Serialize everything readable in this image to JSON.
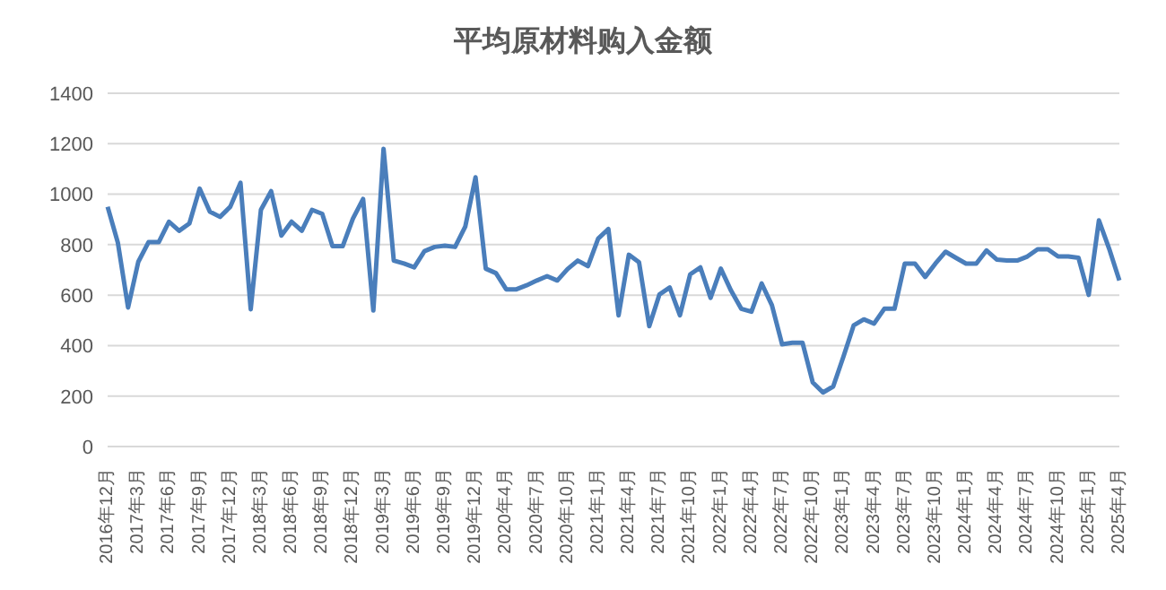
{
  "chart_data": {
    "type": "line",
    "title": "平均原材料购入金额",
    "categories": [
      "2016年12月",
      null,
      null,
      "2017年3月",
      null,
      null,
      "2017年6月",
      null,
      null,
      "2017年9月",
      null,
      null,
      "2017年12月",
      null,
      null,
      "2018年3月",
      null,
      null,
      "2018年6月",
      null,
      null,
      "2018年9月",
      null,
      null,
      "2018年12月",
      null,
      null,
      "2019年3月",
      null,
      null,
      "2019年6月",
      null,
      null,
      "2019年9月",
      null,
      null,
      "2019年12月",
      null,
      null,
      "2020年4月",
      null,
      null,
      "2020年7月",
      null,
      null,
      "2020年10月",
      null,
      null,
      "2021年1月",
      null,
      null,
      "2021年4月",
      null,
      null,
      "2021年7月",
      null,
      null,
      "2021年10月",
      null,
      null,
      "2022年1月",
      null,
      null,
      "2022年4月",
      null,
      null,
      "2022年7月",
      null,
      null,
      "2022年10月",
      null,
      null,
      "2023年1月",
      null,
      null,
      "2023年4月",
      null,
      null,
      "2023年7月",
      null,
      null,
      "2023年10月",
      null,
      null,
      "2024年1月",
      null,
      null,
      "2024年4月",
      null,
      null,
      "2024年7月",
      null,
      null,
      "2024年10月",
      null,
      null,
      "2025年1月",
      null,
      null,
      "2025年4月"
    ],
    "series": [
      {
        "color": "#4a7ebb",
        "values": [
          950,
          808,
          551,
          732,
          810,
          810,
          891,
          855,
          884,
          1022,
          931,
          910,
          950,
          1045,
          544,
          938,
          1012,
          836,
          891,
          855,
          938,
          922,
          794,
          794,
          903,
          981,
          539,
          1180,
          737,
          725,
          710,
          774,
          791,
          796,
          791,
          872,
          1067,
          705,
          687,
          623,
          623,
          639,
          658,
          675,
          658,
          703,
          737,
          715,
          824,
          862,
          520,
          760,
          730,
          477,
          603,
          630,
          520,
          682,
          710,
          589,
          705,
          618,
          546,
          534,
          646,
          560,
          405,
          411,
          411,
          254,
          214,
          238,
          356,
          480,
          504,
          487,
          546,
          546,
          725,
          725,
          672,
          725,
          772,
          748,
          725,
          725,
          777,
          741,
          737,
          737,
          753,
          782,
          782,
          753,
          753,
          748,
          601,
          896,
          784,
          658
        ]
      }
    ],
    "ylim": [
      0,
      1400
    ],
    "yticks": [
      0,
      200,
      400,
      600,
      800,
      1000,
      1200,
      1400
    ],
    "grid": "y",
    "legend": false,
    "marker": "none",
    "line_style": "solid"
  }
}
